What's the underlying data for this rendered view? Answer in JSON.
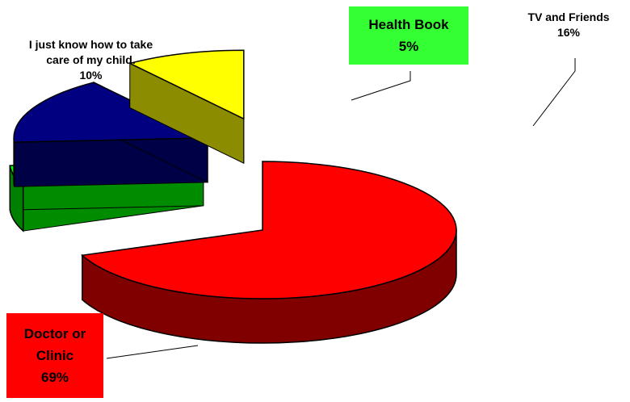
{
  "chart_data": {
    "type": "pie3d",
    "categories": [
      "Doctor or Clinic",
      "Health Book",
      "TV and Friends",
      "I just know how to take care of my child."
    ],
    "values": [
      69,
      5,
      16,
      10
    ],
    "value_labels": [
      "69%",
      "5%",
      "16%",
      "10%"
    ],
    "colors": [
      "#ff0000",
      "#00ff00",
      "#000080",
      "#ffff00"
    ]
  }
}
